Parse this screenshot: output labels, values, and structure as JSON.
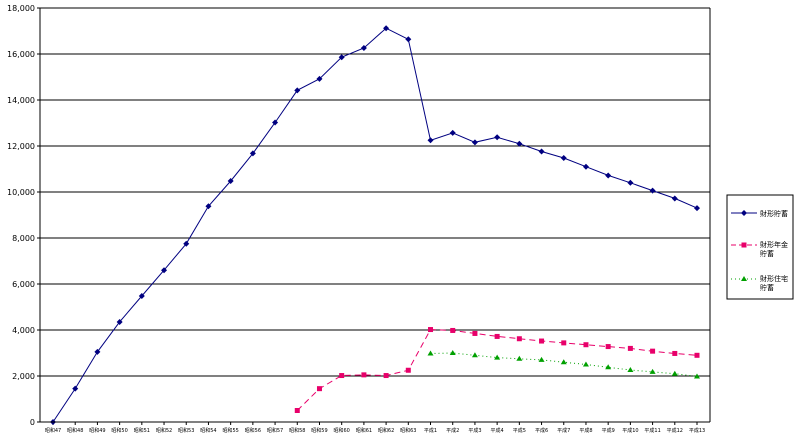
{
  "chart_data": {
    "type": "line",
    "title": "",
    "xlabel": "",
    "ylabel": "",
    "ylim": [
      0,
      18000
    ],
    "yticks": [
      0,
      2000,
      4000,
      6000,
      8000,
      10000,
      12000,
      14000,
      16000,
      18000
    ],
    "ytick_labels": [
      "0",
      "2,000",
      "4,000",
      "6,000",
      "8,000",
      "10,000",
      "12,000",
      "14,000",
      "16,000",
      "18,000"
    ],
    "grid": "horizontal",
    "legend_position": "right",
    "categories": [
      "昭和47",
      "昭和48",
      "昭和49",
      "昭和50",
      "昭和51",
      "昭和52",
      "昭和53",
      "昭和54",
      "昭和55",
      "昭和56",
      "昭和57",
      "昭和58",
      "昭和59",
      "昭和60",
      "昭和61",
      "昭和62",
      "昭和63",
      "平成1",
      "平成2",
      "平成3",
      "平成4",
      "平成5",
      "平成6",
      "平成7",
      "平成8",
      "平成9",
      "平成10",
      "平成11",
      "平成12",
      "平成13"
    ],
    "series": [
      {
        "name": "財形貯蓄",
        "color": "#000080",
        "dash": "",
        "marker": "diamond",
        "values": [
          0,
          1450,
          3050,
          4350,
          5480,
          6600,
          7750,
          9380,
          10480,
          11680,
          13020,
          14420,
          14920,
          15860,
          16260,
          17120,
          16640,
          12250,
          12570,
          12160,
          12380,
          12100,
          11760,
          11480,
          11100,
          10720,
          10400,
          10060,
          9720,
          9300
        ]
      },
      {
        "name": "財形年金貯蓄",
        "color": "#e8006a",
        "dash": "6,4",
        "marker": "square",
        "values": [
          null,
          null,
          null,
          null,
          null,
          null,
          null,
          null,
          null,
          null,
          null,
          500,
          1450,
          2020,
          2050,
          2020,
          2250,
          4020,
          3980,
          3850,
          3720,
          3620,
          3520,
          3440,
          3360,
          3280,
          3200,
          3080,
          2980,
          2900
        ]
      },
      {
        "name": "財形住宅貯蓄",
        "color": "#00a000",
        "dash": "1,3",
        "marker": "triangle",
        "values": [
          null,
          null,
          null,
          null,
          null,
          null,
          null,
          null,
          null,
          null,
          null,
          null,
          null,
          null,
          null,
          null,
          null,
          2980,
          3000,
          2900,
          2800,
          2750,
          2700,
          2600,
          2500,
          2380,
          2260,
          2180,
          2100,
          1980
        ]
      }
    ]
  },
  "legend": {
    "items": [
      {
        "line1": "財形貯蓄",
        "line2": ""
      },
      {
        "line1": "財形年金",
        "line2": "貯蓄"
      },
      {
        "line1": "財形住宅",
        "line2": "貯蓄"
      }
    ]
  }
}
